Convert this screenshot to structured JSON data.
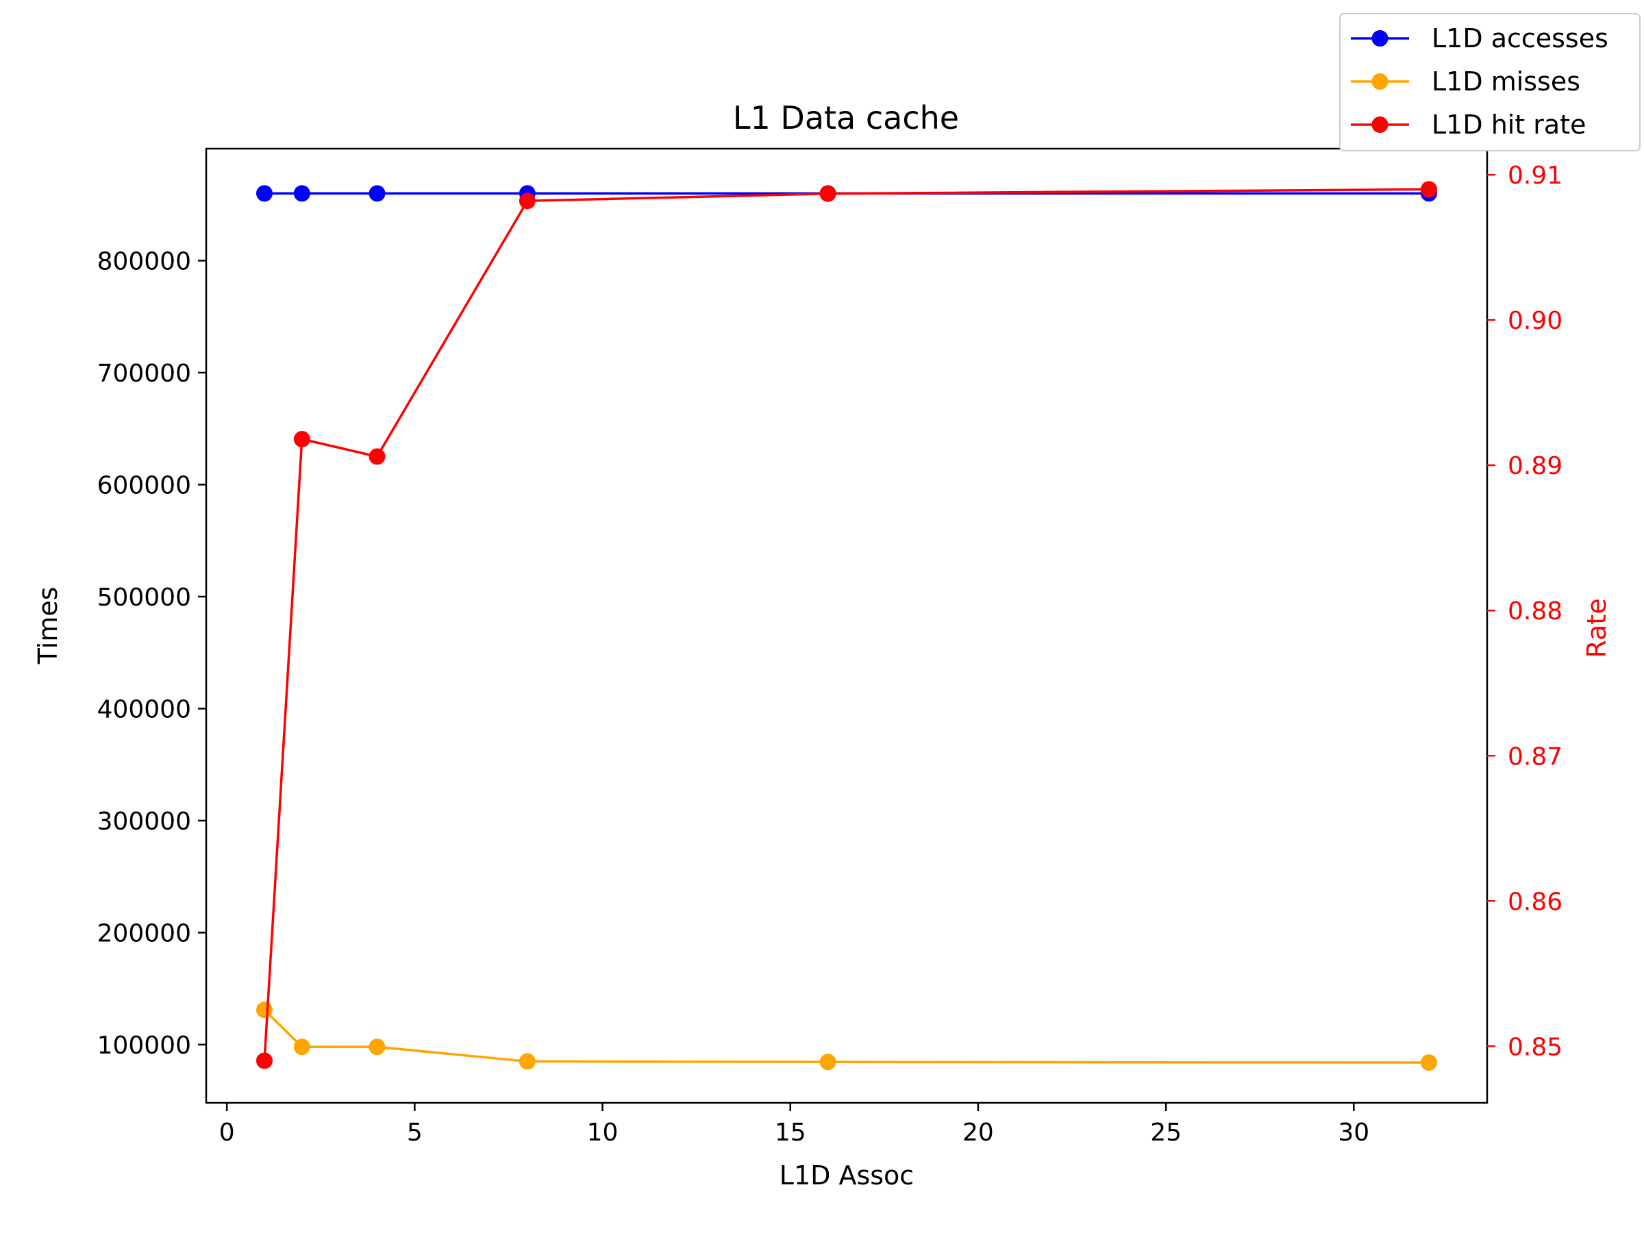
{
  "chart_data": {
    "type": "line",
    "title": "L1 Data cache",
    "xlabel": "L1D Assoc",
    "ylabel_left": "Times",
    "ylabel_right": "Rate",
    "x": [
      1,
      2,
      4,
      8,
      16,
      32
    ],
    "xlim": [
      -0.55,
      33.55
    ],
    "ylim_left": [
      48000,
      900000
    ],
    "ylim_right": [
      0.8461,
      0.9118
    ],
    "xticks": [
      0,
      5,
      10,
      15,
      20,
      25,
      30
    ],
    "yticks_left": [
      100000,
      200000,
      300000,
      400000,
      500000,
      600000,
      700000,
      800000
    ],
    "yticks_right": [
      0.85,
      0.86,
      0.87,
      0.88,
      0.89,
      0.9,
      0.91
    ],
    "xtick_labels": [
      "0",
      "5",
      "10",
      "15",
      "20",
      "25",
      "30"
    ],
    "ytick_labels_left": [
      "100000",
      "200000",
      "300000",
      "400000",
      "500000",
      "600000",
      "700000",
      "800000"
    ],
    "ytick_labels_right": [
      "0.85",
      "0.86",
      "0.87",
      "0.88",
      "0.89",
      "0.90",
      "0.91"
    ],
    "grid": false,
    "legend_position": "top-right",
    "colors": {
      "accesses": "#0000ff",
      "misses": "#ffa500",
      "hit_rate": "#ff0000"
    },
    "series": [
      {
        "name": "L1D accesses",
        "axis": "left",
        "color": "#0000ff",
        "values": [
          860000,
          860000,
          860000,
          860000,
          860000,
          860000
        ]
      },
      {
        "name": "L1D misses",
        "axis": "left",
        "color": "#ffa500",
        "values": [
          131000,
          98000,
          98000,
          85000,
          84500,
          84000
        ]
      },
      {
        "name": "L1D hit rate",
        "axis": "right",
        "color": "#ff0000",
        "values": [
          0.849,
          0.8918,
          0.8906,
          0.9082,
          0.9087,
          0.909
        ]
      }
    ]
  }
}
